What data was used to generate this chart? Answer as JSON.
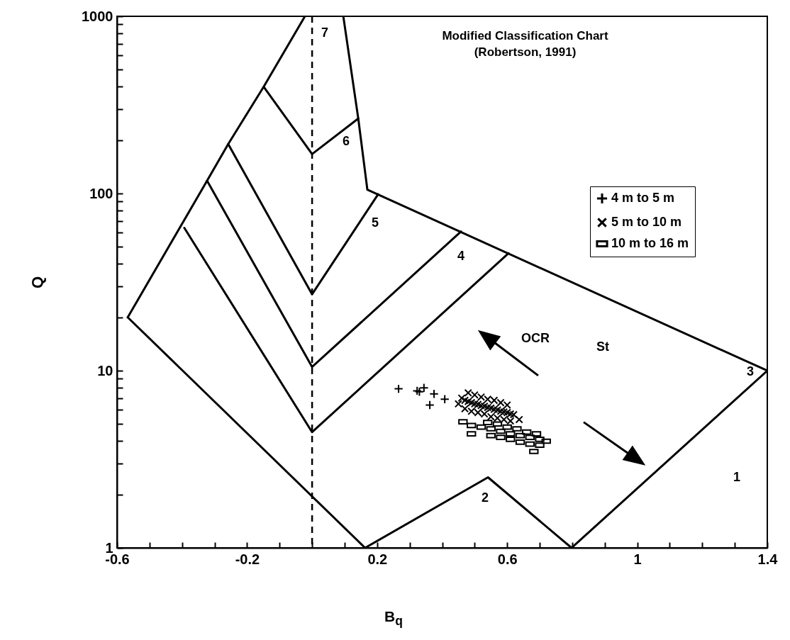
{
  "chart_data": {
    "type": "scatter",
    "title": "Modified Classification Chart",
    "subtitle": "(Robertson, 1991)",
    "xlabel": "B$_{q}$",
    "ylabel": "Q",
    "log": "y",
    "legend": "right",
    "xlim": [
      -0.6,
      1.4
    ],
    "ylim": [
      1,
      1000
    ],
    "xticks": [
      -0.6,
      {
        "value": -0.5,
        "label": null
      },
      {
        "value": -0.4,
        "label": null
      },
      {
        "value": -0.3,
        "label": null
      },
      -0.2,
      {
        "value": -0.1,
        "label": null
      },
      {
        "value": 0,
        "label": null
      },
      {
        "value": 0.1,
        "label": null
      },
      0.2,
      {
        "value": 0.3,
        "label": null
      },
      {
        "value": 0.4,
        "label": null
      },
      {
        "value": 0.5,
        "label": null
      },
      0.6,
      {
        "value": 0.7,
        "label": null
      },
      {
        "value": 0.8,
        "label": null
      },
      {
        "value": 0.9,
        "label": null
      },
      1,
      {
        "value": 1.1,
        "label": null
      },
      {
        "value": 1.2,
        "label": null
      },
      {
        "value": 1.3,
        "label": null
      },
      1.4
    ],
    "yticks": [
      1,
      {
        "value": 2,
        "label": null
      },
      {
        "value": 3,
        "label": null
      },
      {
        "value": 4,
        "label": null
      },
      {
        "value": 5,
        "label": null
      },
      {
        "value": 6,
        "label": null
      },
      {
        "value": 7,
        "label": null
      },
      {
        "value": 8,
        "label": null
      },
      {
        "value": 9,
        "label": null
      },
      10,
      {
        "value": 20,
        "label": null
      },
      {
        "value": 30,
        "label": null
      },
      {
        "value": 40,
        "label": null
      },
      {
        "value": 50,
        "label": null
      },
      {
        "value": 60,
        "label": null
      },
      {
        "value": 70,
        "label": null
      },
      {
        "value": 80,
        "label": null
      },
      {
        "value": 90,
        "label": null
      },
      100,
      {
        "value": 200,
        "label": null
      },
      {
        "value": 300,
        "label": null
      },
      {
        "value": 400,
        "label": null
      },
      {
        "value": 500,
        "label": null
      },
      {
        "value": 600,
        "label": null
      },
      {
        "value": 700,
        "label": null
      },
      {
        "value": 800,
        "label": null
      },
      {
        "value": 900,
        "label": null
      },
      1000
    ],
    "ref_lines": [
      {
        "axis": "x",
        "value": 0,
        "line_style": "dashed",
        "color": "#000000"
      }
    ],
    "annotations": [
      "7",
      "6",
      "5",
      "4",
      "3",
      "2",
      "1",
      "OCR",
      "St"
    ],
    "series": [
      {
        "type": "line",
        "color": "#000000",
        "x": [
          -0.567,
          -0.323,
          -0.258,
          -0.149,
          -0.022
        ],
        "values": [
          20,
          118,
          190,
          400,
          1000
        ]
      },
      {
        "type": "line",
        "color": "#000000",
        "x": [
          -0.567,
          0.163
        ],
        "values": [
          20,
          1
        ]
      },
      {
        "type": "line",
        "color": "#000000",
        "x": [
          0.163,
          0.541,
          0.798
        ],
        "values": [
          1,
          2.5,
          1
        ]
      },
      {
        "type": "line",
        "color": "#000000",
        "x": [
          0.798,
          1.4
        ],
        "values": [
          1,
          10
        ]
      },
      {
        "type": "line",
        "color": "#000000",
        "x": [
          0.096,
          0.142,
          0.17,
          1.4
        ],
        "values": [
          1000,
          265,
          105,
          10
        ]
      },
      {
        "type": "line",
        "color": "#000000",
        "x": [
          -0.393,
          0,
          0.604
        ],
        "values": [
          64,
          4.5,
          46
        ]
      },
      {
        "type": "line",
        "color": "#000000",
        "x": [
          -0.323,
          0,
          0.458
        ],
        "values": [
          118,
          10.5,
          61
        ]
      },
      {
        "type": "line",
        "color": "#000000",
        "x": [
          -0.258,
          0,
          0.203
        ],
        "values": [
          190,
          27,
          99
        ]
      },
      {
        "type": "line",
        "color": "#000000",
        "x": [
          -0.149,
          0,
          0.142
        ],
        "values": [
          400,
          167,
          265
        ]
      },
      {
        "name": "4 m to 5 m",
        "color": "#000000",
        "marker": "cross",
        "x": [
          0.266,
          0.323,
          0.344,
          0.362,
          0.408,
          0.375,
          0.33
        ],
        "values": [
          7.9,
          7.7,
          8.0,
          6.4,
          6.9,
          7.4,
          7.6
        ]
      },
      {
        "name": "5 m to 10 m",
        "color": "#000000",
        "marker": "x",
        "x": [
          0.47,
          0.48,
          0.49,
          0.5,
          0.51,
          0.52,
          0.53,
          0.54,
          0.55,
          0.56,
          0.57,
          0.58,
          0.59,
          0.6,
          0.61,
          0.62,
          0.48,
          0.5,
          0.52,
          0.54,
          0.56,
          0.58,
          0.6,
          0.47,
          0.49,
          0.51,
          0.53,
          0.55,
          0.57,
          0.59,
          0.61,
          0.45,
          0.46,
          0.637
        ],
        "values": [
          6.8,
          6.7,
          6.6,
          6.5,
          6.45,
          6.35,
          6.3,
          6.2,
          6.15,
          6.05,
          6.0,
          5.9,
          5.85,
          5.8,
          5.7,
          5.65,
          7.5,
          7.3,
          7.1,
          6.9,
          6.8,
          6.6,
          6.4,
          6.1,
          5.9,
          5.8,
          5.7,
          5.5,
          5.4,
          5.3,
          5.2,
          6.5,
          7.0,
          5.3
        ]
      },
      {
        "name": "10 m to 16 m",
        "color": "#000000",
        "x": [
          0.49,
          0.52,
          0.55,
          0.58,
          0.61,
          0.64,
          0.67,
          0.7,
          0.72,
          0.54,
          0.57,
          0.6,
          0.63,
          0.66,
          0.69,
          0.55,
          0.58,
          0.61,
          0.64,
          0.67,
          0.7,
          0.464,
          0.49,
          0.682
        ],
        "values": [
          4.9,
          4.8,
          4.7,
          4.55,
          4.4,
          4.3,
          4.2,
          4.1,
          4.0,
          5.1,
          5.0,
          4.8,
          4.7,
          4.5,
          4.4,
          4.3,
          4.2,
          4.1,
          3.95,
          3.85,
          3.8,
          5.15,
          4.4,
          3.5
        ]
      }
    ]
  }
}
